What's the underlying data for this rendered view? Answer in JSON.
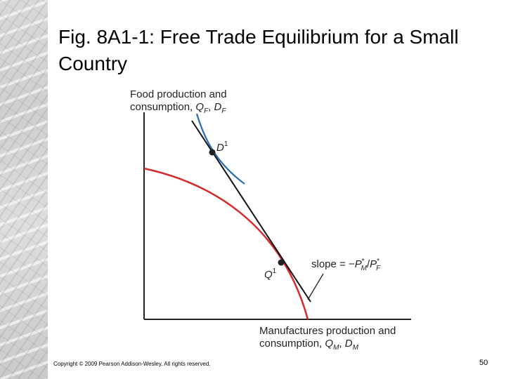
{
  "slide": {
    "title": "Fig. 8A1-1: Free Trade Equilibrium for a Small Country",
    "copyright": "Copyright © 2009 Pearson Addison-Wesley. All rights reserved.",
    "page_number": "50"
  },
  "diagram": {
    "y_axis_label_line1": "Food production and",
    "y_axis_label_line2": "consumption, ",
    "y_axis_vars": "Q",
    "y_axis_sub1": "F",
    "y_axis_sep": ", ",
    "y_axis_var2": "D",
    "y_axis_sub2": "F",
    "x_axis_label_line1": "Manufactures production and",
    "x_axis_label_line2": "consumption, ",
    "x_axis_var1": "Q",
    "x_axis_sub1": "M",
    "x_axis_sep": ", ",
    "x_axis_var2": "D",
    "x_axis_sub2": "M",
    "point_d_letter": "D",
    "point_d_sup": "1",
    "point_q_letter": "Q",
    "point_q_sup": "1",
    "slope_text": "slope = −",
    "slope_pm": "P",
    "slope_pm_sub": "M",
    "slope_pm_sup": "*",
    "slope_div": "/",
    "slope_pf": "P",
    "slope_pf_sub": "F",
    "slope_pf_sup": "*",
    "colors": {
      "ppf": "#d42a2a",
      "indifference": "#2a6fb5",
      "price_line": "#111111",
      "axes": "#222222"
    }
  }
}
